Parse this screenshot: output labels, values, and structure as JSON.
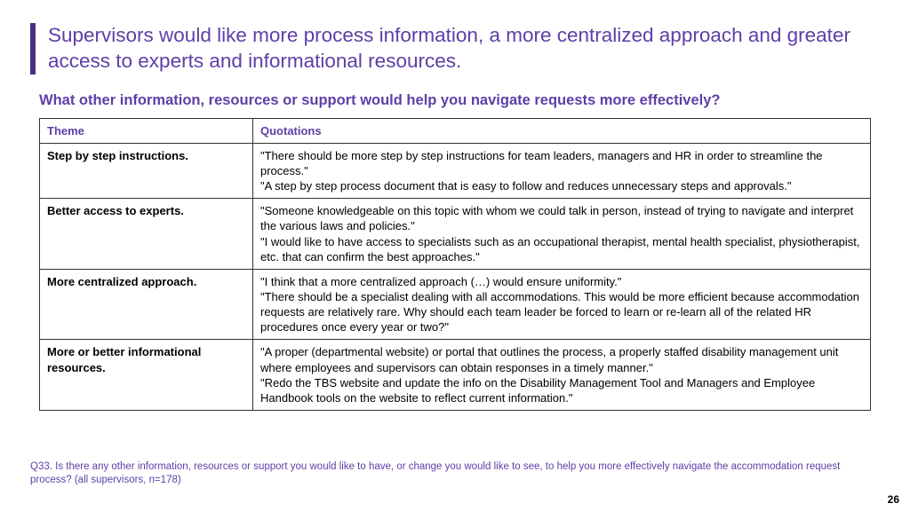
{
  "title": "Supervisors would like more process information, a more centralized approach and greater access to experts and informational resources.",
  "subtitle": "What other information, resources or support would help you navigate requests more effectively?",
  "table": {
    "columns": [
      "Theme",
      "Quotations"
    ],
    "rows": [
      {
        "theme": "Step by step instructions.",
        "quotes": "\"There should be more step by step instructions for team leaders, managers and HR in order to streamline the process.\"\n\"A step by step process document that is easy to follow and reduces unnecessary steps and approvals.\""
      },
      {
        "theme": "Better access to experts.",
        "quotes": "\"Someone knowledgeable on this topic with whom we could talk in person, instead of trying to navigate and interpret the various laws and policies.\"\n\"I would like to have access to specialists such as an occupational therapist, mental health specialist, physiotherapist, etc. that can confirm the best approaches.\""
      },
      {
        "theme": "More centralized approach.",
        "quotes": "\"I think that a more centralized approach (…) would ensure uniformity.\"\n\"There should be a specialist dealing with all accommodations. This would be more efficient because accommodation requests are relatively rare. Why should each team leader be forced to learn or re-learn all of the related HR procedures once every year or two?\""
      },
      {
        "theme": "More or better informational resources.",
        "quotes": "\"A proper (departmental website) or portal that outlines the process, a properly staffed disability management unit where employees and supervisors can obtain responses in a timely manner.\"\n\"Redo the TBS website and update the info on the Disability Management Tool and Managers and Employee Handbook tools on the website to reflect current information.\""
      }
    ]
  },
  "footnote": "Q33. Is there any other information, resources or support you would like to have, or change you would like to see, to help you more effectively navigate the accommodation request process? (all supervisors, n=178)",
  "page_number": "26"
}
